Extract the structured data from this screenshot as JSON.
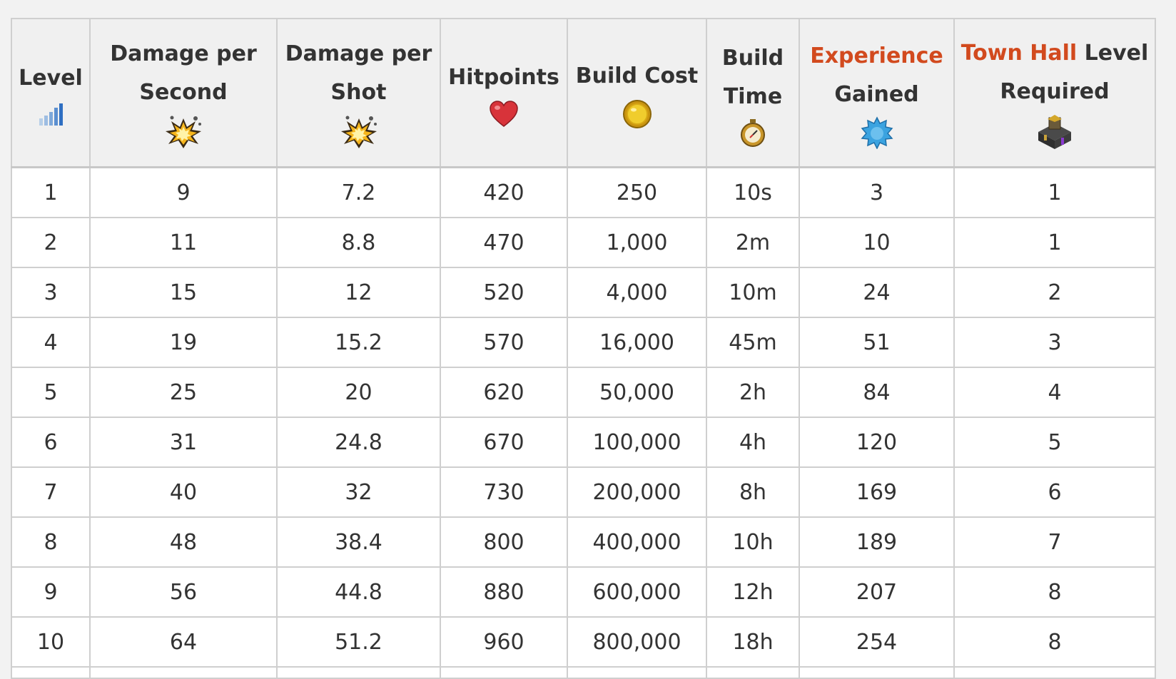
{
  "headers": {
    "level": "Level",
    "dps_line1": "Damage per",
    "dps_line2": "Second",
    "dpshot_line1": "Damage per",
    "dpshot_line2": "Shot",
    "hitpoints": "Hitpoints",
    "build_cost": "Build Cost",
    "build_time_line1": "Build",
    "build_time_line2": "Time",
    "xp_highlight": "Experience",
    "xp_line2": "Gained",
    "th_highlight": "Town Hall",
    "th_rest": " Level",
    "th_line2": "Required"
  },
  "icons": {
    "level": "level-bars-icon",
    "dps": "explosion-icon",
    "dpshot": "explosion-icon",
    "hitpoints": "heart-icon",
    "build_cost": "gold-coin-icon",
    "build_time": "stopwatch-icon",
    "xp": "experience-star-icon",
    "th": "town-hall-icon"
  },
  "colors": {
    "highlight": "#d24a1e",
    "heart": "#d8333a",
    "coin": "#e8c21a",
    "xp": "#3ba3e0"
  },
  "rows": [
    [
      "1",
      "9",
      "7.2",
      "420",
      "250",
      "10s",
      "3",
      "1"
    ],
    [
      "2",
      "11",
      "8.8",
      "470",
      "1,000",
      "2m",
      "10",
      "1"
    ],
    [
      "3",
      "15",
      "12",
      "520",
      "4,000",
      "10m",
      "24",
      "2"
    ],
    [
      "4",
      "19",
      "15.2",
      "570",
      "16,000",
      "45m",
      "51",
      "3"
    ],
    [
      "5",
      "25",
      "20",
      "620",
      "50,000",
      "2h",
      "84",
      "4"
    ],
    [
      "6",
      "31",
      "24.8",
      "670",
      "100,000",
      "4h",
      "120",
      "5"
    ],
    [
      "7",
      "40",
      "32",
      "730",
      "200,000",
      "8h",
      "169",
      "6"
    ],
    [
      "8",
      "48",
      "38.4",
      "800",
      "400,000",
      "10h",
      "189",
      "7"
    ],
    [
      "9",
      "56",
      "44.8",
      "880",
      "600,000",
      "12h",
      "207",
      "8"
    ],
    [
      "10",
      "64",
      "51.2",
      "960",
      "800,000",
      "18h",
      "254",
      "8"
    ]
  ]
}
